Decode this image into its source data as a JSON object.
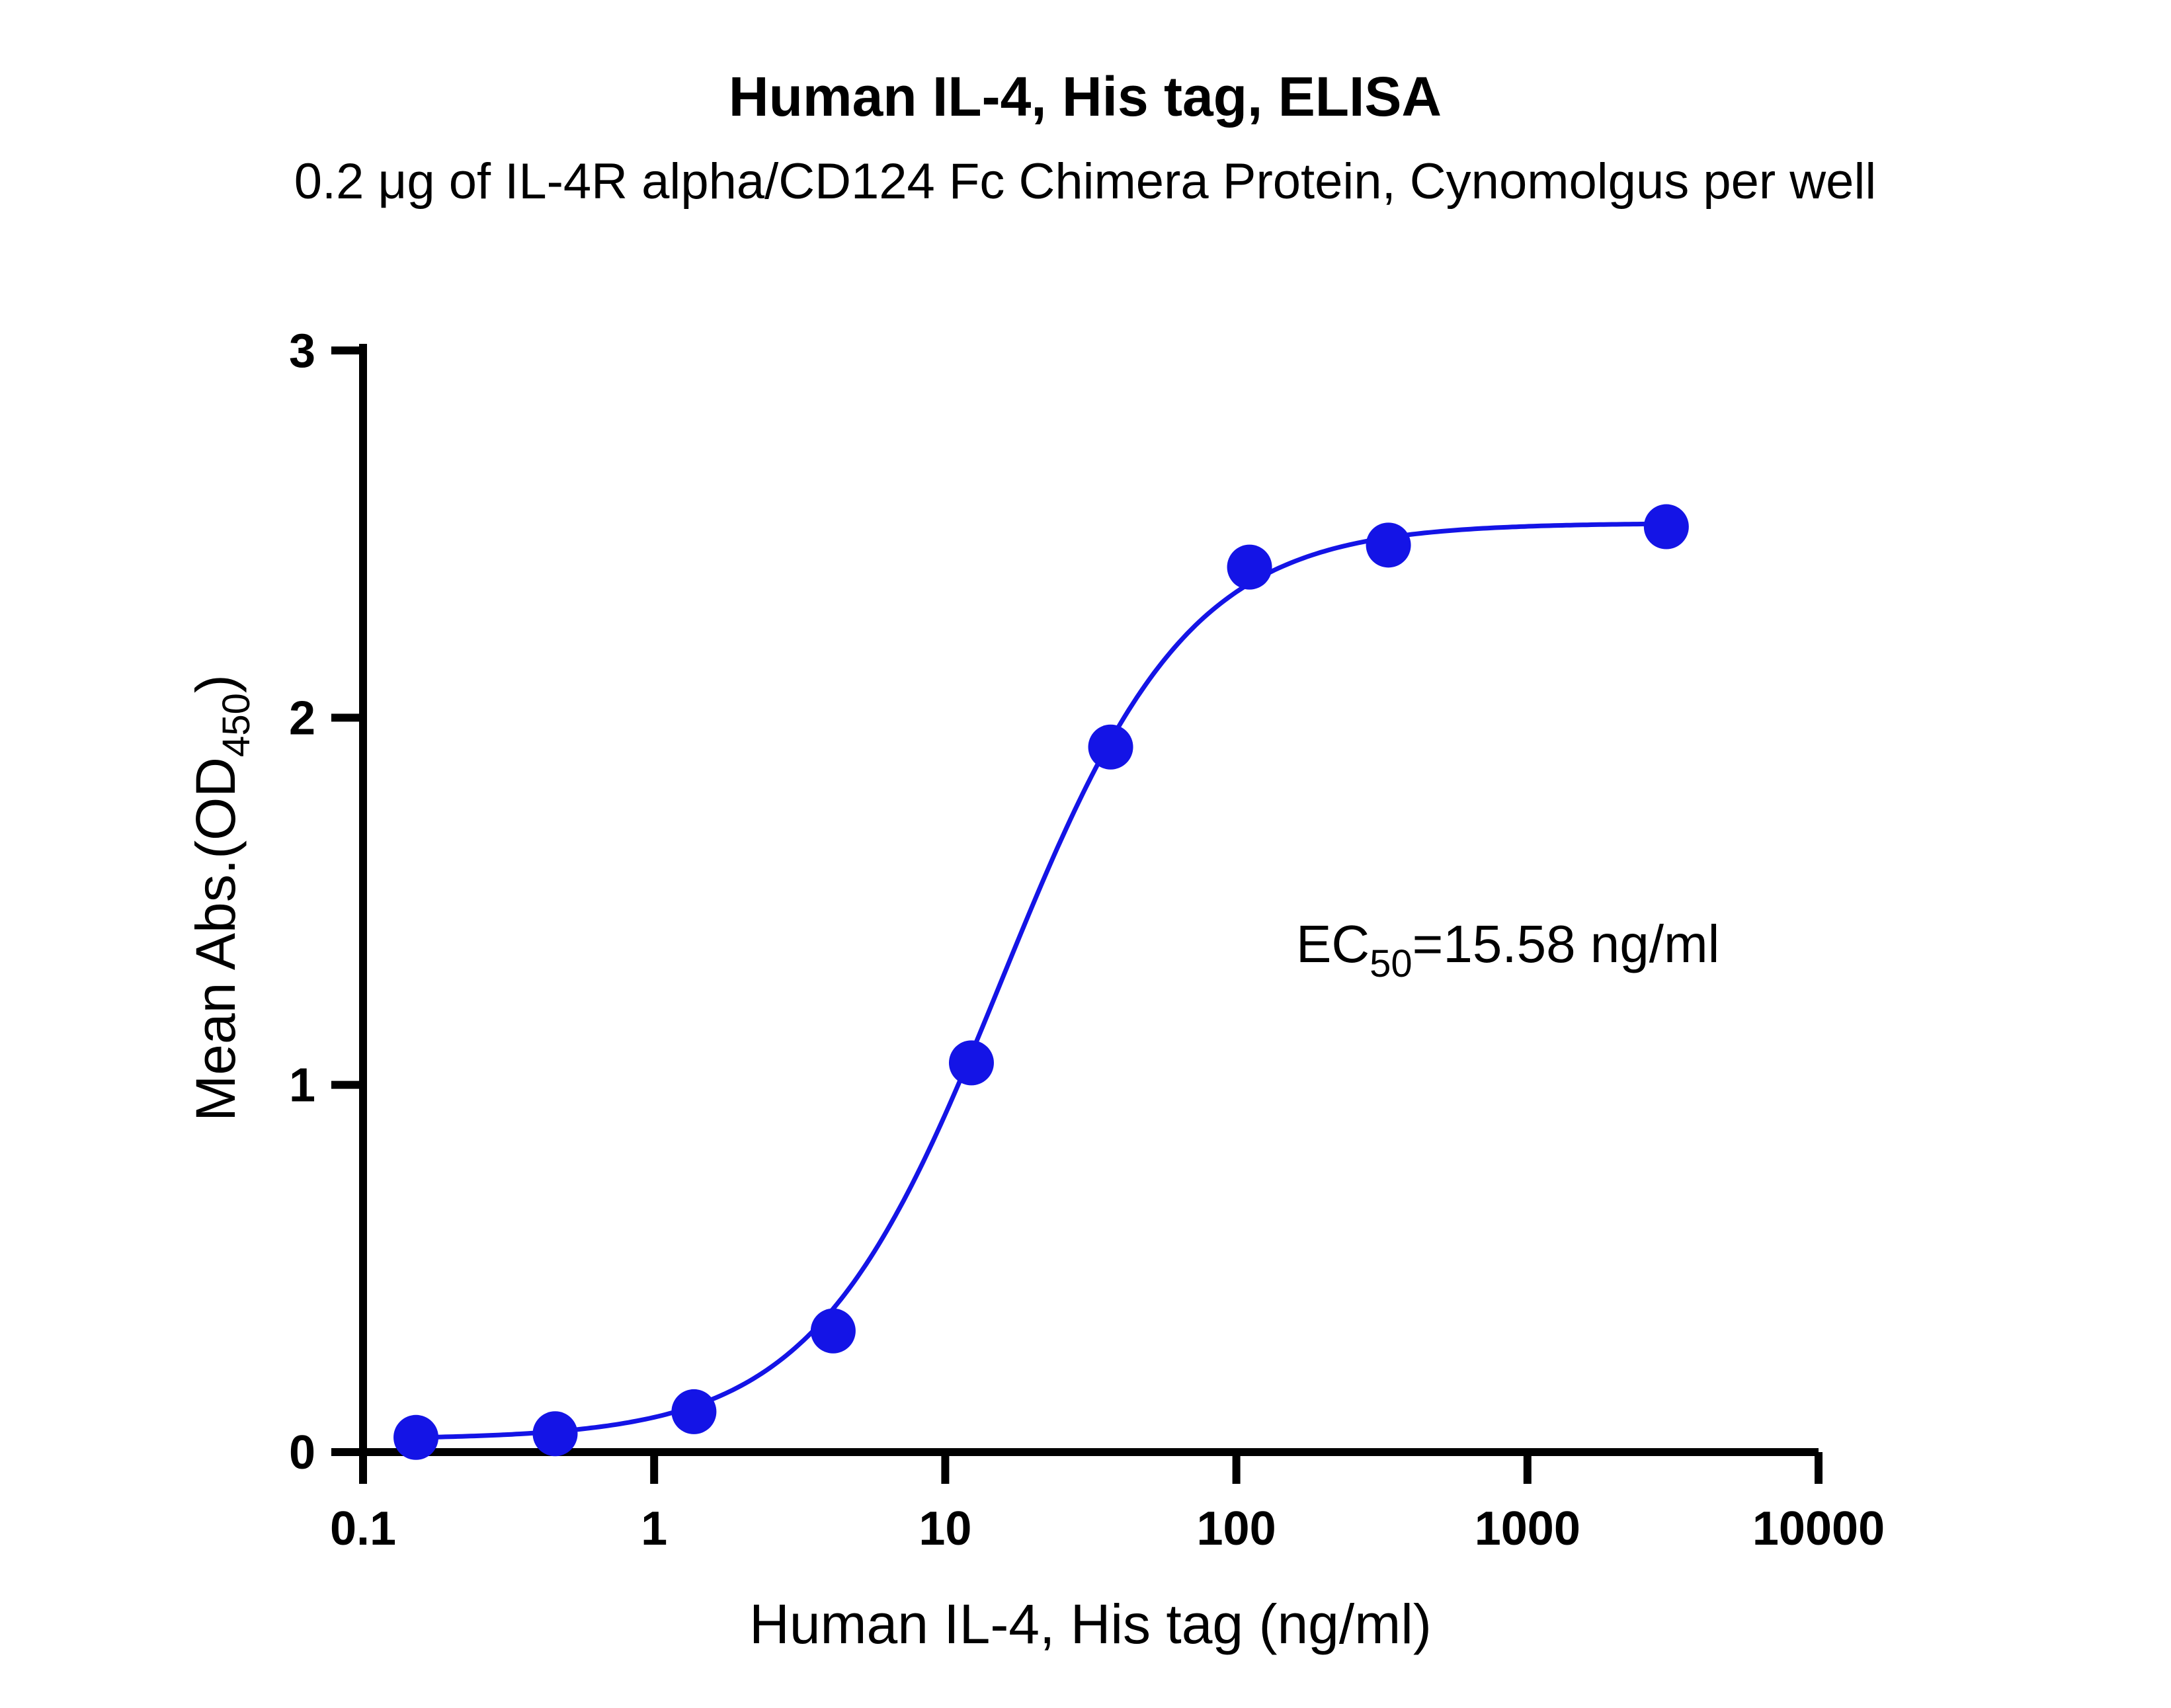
{
  "chart_data": {
    "type": "scatter",
    "title": "Human IL-4, His tag, ELISA",
    "subtitle": "0.2 μg of IL-4R alpha/CD124 Fc Chimera Protein, Cynomolgus per well",
    "xlabel": "Human IL-4, His tag (ng/ml)",
    "ylabel": {
      "main": "Mean Abs.(OD",
      "sub": "450",
      "close": ")"
    },
    "x_scale": "log",
    "xlim": [
      0.1,
      10000
    ],
    "ylim": [
      0,
      3
    ],
    "x_ticks": [
      0.1,
      1,
      10,
      100,
      1000,
      10000
    ],
    "x_tick_labels": [
      "0.1",
      "1",
      "10",
      "100",
      "1000",
      "10000"
    ],
    "y_ticks": [
      0,
      1,
      2,
      3
    ],
    "y_tick_labels": [
      "0",
      "1",
      "2",
      "3"
    ],
    "grid": false,
    "series": [
      {
        "color": "#1414e6",
        "x": [
          0.152,
          0.457,
          1.37,
          4.12,
          12.3,
          37.0,
          111,
          333,
          3000
        ],
        "y": [
          0.04,
          0.05,
          0.11,
          0.33,
          1.06,
          1.92,
          2.41,
          2.47,
          2.52
        ]
      }
    ],
    "fit_curve": {
      "type": "4PL",
      "bottom": 0.035,
      "top": 2.53,
      "ec50": 15.58,
      "hill": 1.35,
      "color": "#1414e6"
    },
    "annotation": {
      "prefix": "EC",
      "sub": "50",
      "suffix": "=15.58 ng/ml"
    }
  }
}
